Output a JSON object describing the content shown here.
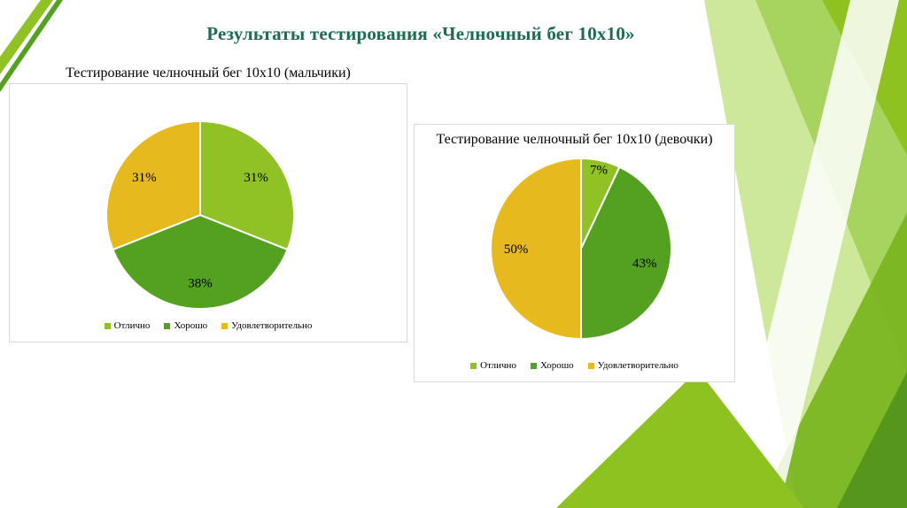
{
  "slide": {
    "title": "Результаты тестирования «Челночный бег 10х10»"
  },
  "colors": {
    "excellent": "#90C226",
    "good": "#54A021",
    "satisfactory": "#E6B91E",
    "title_text": "#1C6B52",
    "chart_border": "#d9d9d9"
  },
  "chart_data": [
    {
      "type": "pie",
      "title": "Тестирование челночный бег 10х10 (мальчики)",
      "categories": [
        "Отлично",
        "Хорошо",
        "Удовлетворительно"
      ],
      "values": [
        31,
        38,
        31
      ],
      "labels": [
        "31%",
        "38%",
        "31%"
      ],
      "colors": [
        "#90C226",
        "#54A021",
        "#E6B91E"
      ],
      "legend_position": "bottom",
      "start_angle_deg": 0,
      "direction": "clockwise"
    },
    {
      "type": "pie",
      "title": "Тестирование челночный бег 10х10 (девочки)",
      "categories": [
        "Отлично",
        "Хорошо",
        "Удовлетворительно"
      ],
      "values": [
        7,
        43,
        50
      ],
      "labels": [
        "7%",
        "43%",
        "50%"
      ],
      "colors": [
        "#90C226",
        "#54A021",
        "#E6B91E"
      ],
      "legend_position": "bottom",
      "start_angle_deg": 0,
      "direction": "clockwise"
    }
  ]
}
